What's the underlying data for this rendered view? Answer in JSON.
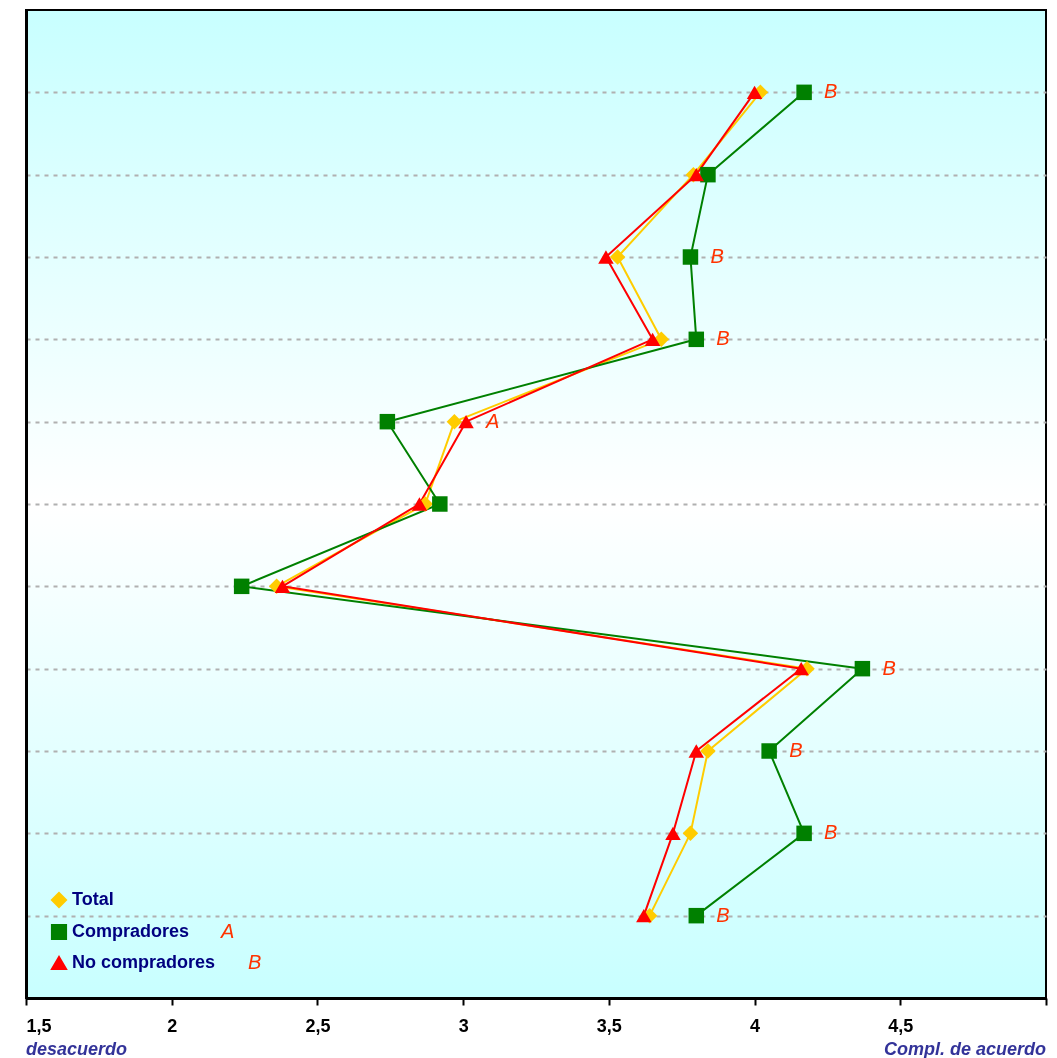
{
  "chart_data": {
    "type": "line",
    "orientation": "horizontal",
    "categories": [
      null,
      null,
      null,
      null,
      null,
      null,
      null,
      null,
      null,
      null,
      null
    ],
    "xlim": [
      1.5,
      5
    ],
    "xticks": [
      {
        "value": 1.5,
        "label": "1,5"
      },
      2,
      {
        "value": 2.5,
        "label": "2,5"
      },
      3,
      {
        "value": 3.5,
        "label": "3,5"
      },
      4,
      {
        "value": 4.5,
        "label": "4,5"
      },
      {
        "value": 5,
        "label": null
      }
    ],
    "series": [
      {
        "name": "Total",
        "color": "#ffcc00",
        "marker": "diamond",
        "values": [
          4.02,
          3.79,
          3.53,
          3.68,
          2.97,
          2.87,
          2.36,
          4.18,
          3.84,
          3.78,
          3.64
        ]
      },
      {
        "name": "Compradores",
        "color": "#008000",
        "marker": "square",
        "values": [
          4.17,
          3.84,
          3.78,
          3.8,
          2.74,
          2.92,
          2.24,
          4.37,
          4.05,
          4.17,
          3.8
        ],
        "value_labels": [
          "B",
          null,
          "B",
          "B",
          null,
          null,
          null,
          "B",
          "B",
          "B",
          "B"
        ]
      },
      {
        "name": "No compradores",
        "color": "#ff0000",
        "marker": "triangle",
        "values": [
          4.0,
          3.8,
          3.49,
          3.65,
          3.01,
          2.85,
          2.38,
          4.16,
          3.8,
          3.72,
          3.62
        ],
        "value_labels": [
          null,
          null,
          null,
          null,
          "A",
          null,
          null,
          null,
          null,
          null,
          null
        ]
      }
    ],
    "annotations": [
      "A",
      "B",
      "desacuerdo",
      "Compl. de acuerdo"
    ],
    "grid": "y",
    "legend": "bottom left",
    "tick_labels": "x"
  }
}
